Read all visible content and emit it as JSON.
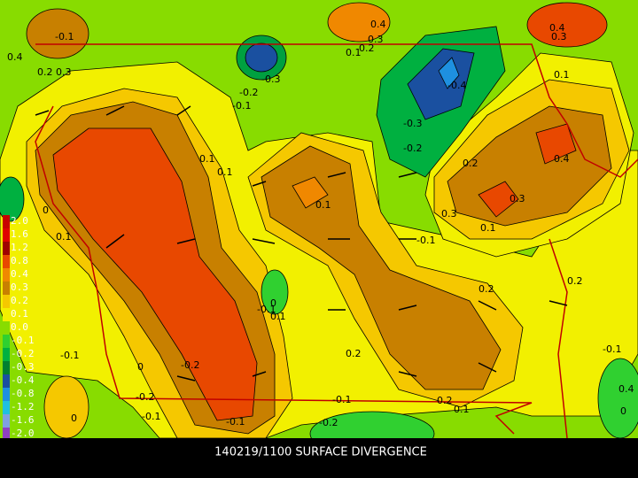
{
  "caption": "140219/1100 SURFACE DIVERGENCE",
  "colorbar": {
    "labels": [
      "2.0",
      "1.6",
      "1.2",
      "0.8",
      "0.4",
      "0.3",
      "0.2",
      "0.1",
      "0.0",
      "-0.1",
      "-0.2",
      "-0.3",
      "-0.4",
      "-0.8",
      "-1.2",
      "-1.6",
      "-2.0"
    ]
  },
  "contour_labels": [
    "0.4",
    "-0.1",
    "0.2",
    "0.3",
    "0.4",
    "0.3",
    "0.2",
    "0.1",
    "0.4",
    "0.3",
    "-0.3",
    "-0.2",
    "-0.1",
    "-0.4",
    "-0.3",
    "-0.2",
    "0.1",
    "0.1",
    "0.1",
    "0.2",
    "0.4",
    "0.3",
    "0.1",
    "0.3",
    "0.1",
    "-0.1",
    "0.1",
    "0",
    "0.2",
    "0.2",
    "0",
    "-0.1",
    "0.2",
    "-0.1",
    "0",
    "-0.2",
    "-0.1",
    "0.4",
    "-0.2",
    "-0.1",
    "0.2",
    "0.1",
    "0",
    "-0.1",
    "0",
    "-0.1",
    "-0.2",
    "0.1"
  ]
}
